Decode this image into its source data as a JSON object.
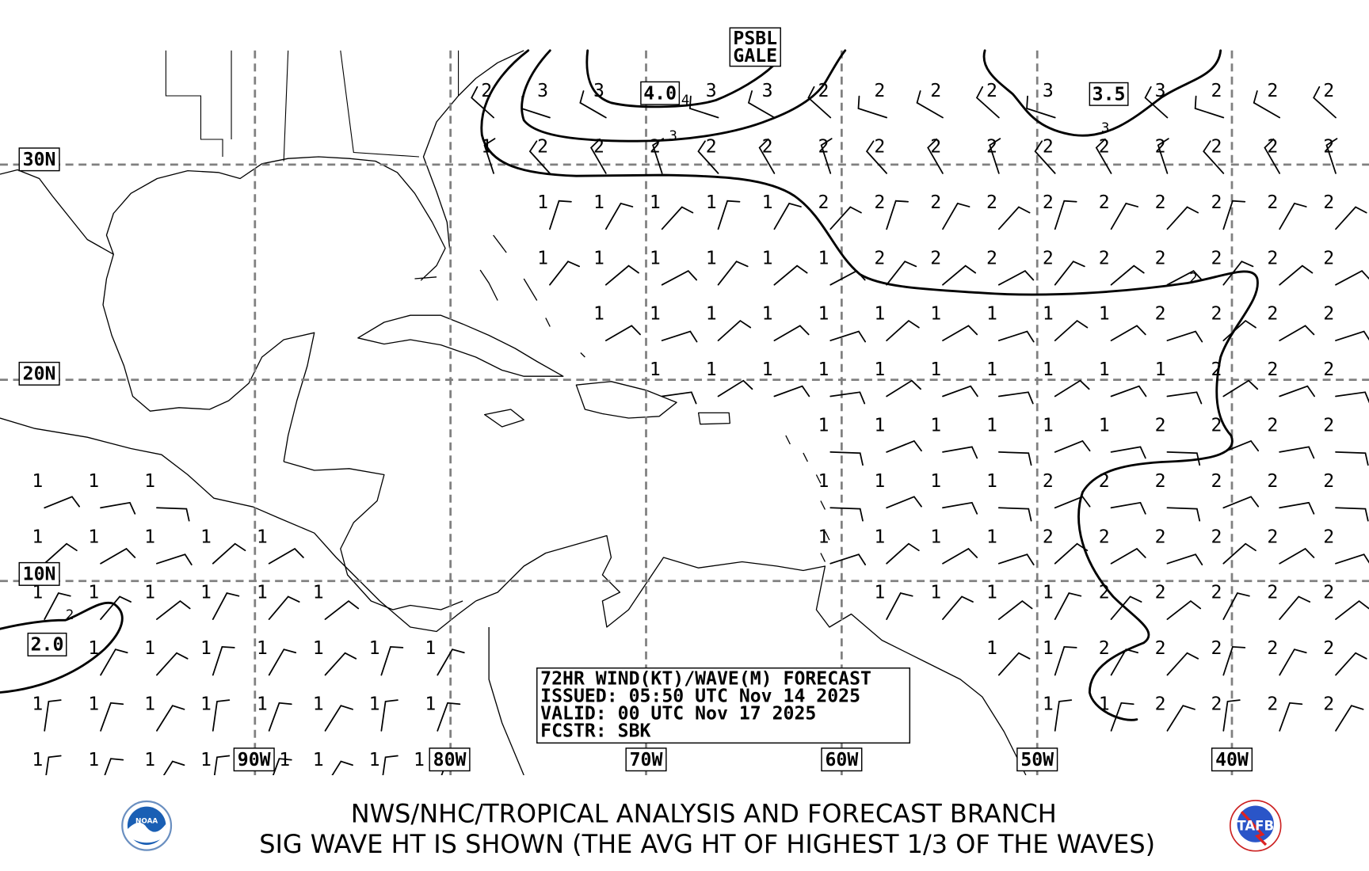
{
  "map": {
    "lat_labels": [
      "30N",
      "20N",
      "10N"
    ],
    "lon_labels": [
      "90W",
      "80W",
      "70W",
      "60W",
      "50W",
      "40W"
    ],
    "boxed_values": {
      "gale": [
        "PSBL",
        "GALE"
      ],
      "max_a": "4.0",
      "max_b": "3.5",
      "max_c": "2.0"
    },
    "contour_labels": [
      "4",
      "3",
      "3",
      "2",
      "2"
    ],
    "wave_heights_m": [
      [
        "",
        "",
        "",
        "",
        "",
        "",
        "",
        "",
        "2",
        "3",
        "3",
        "",
        "3",
        "3",
        "2",
        "2",
        "2",
        "2",
        "3",
        "",
        "3",
        "2",
        "2",
        "2"
      ],
      [
        "",
        "",
        "",
        "",
        "",
        "",
        "",
        "",
        "1",
        "2",
        "2",
        "2",
        "2",
        "2",
        "2",
        "2",
        "2",
        "2",
        "2",
        "2",
        "2",
        "2",
        "2",
        "2"
      ],
      [
        "",
        "",
        "",
        "",
        "",
        "",
        "",
        "",
        "",
        "1",
        "1",
        "1",
        "1",
        "1",
        "2",
        "2",
        "2",
        "2",
        "2",
        "2",
        "2",
        "2",
        "2",
        "2"
      ],
      [
        "",
        "",
        "",
        "",
        "",
        "",
        "",
        "",
        "",
        "1",
        "1",
        "1",
        "1",
        "1",
        "1",
        "2",
        "2",
        "2",
        "2",
        "2",
        "2",
        "2",
        "2",
        "2"
      ],
      [
        "",
        "",
        "",
        "",
        "",
        "",
        "",
        "",
        "",
        "",
        "1",
        "1",
        "1",
        "1",
        "1",
        "1",
        "1",
        "1",
        "1",
        "1",
        "2",
        "2",
        "2",
        "2"
      ],
      [
        "",
        "",
        "",
        "",
        "",
        "",
        "",
        "",
        "",
        "",
        "",
        "1",
        "1",
        "1",
        "1",
        "1",
        "1",
        "1",
        "1",
        "1",
        "1",
        "2",
        "2",
        "2"
      ],
      [
        "",
        "",
        "",
        "",
        "",
        "",
        "",
        "",
        "",
        "",
        "",
        "",
        "",
        "",
        "1",
        "1",
        "1",
        "1",
        "1",
        "1",
        "2",
        "2",
        "2",
        "2"
      ],
      [
        "1",
        "1",
        "1",
        "",
        "",
        "",
        "",
        "",
        "",
        "",
        "",
        "",
        "",
        "",
        "1",
        "1",
        "1",
        "1",
        "2",
        "2",
        "2",
        "2",
        "2",
        "2"
      ],
      [
        "1",
        "1",
        "1",
        "1",
        "1",
        "",
        "",
        "",
        "",
        "",
        "",
        "",
        "",
        "",
        "1",
        "1",
        "1",
        "1",
        "2",
        "2",
        "2",
        "2",
        "2",
        "2"
      ],
      [
        "1",
        "1",
        "1",
        "1",
        "1",
        "1",
        "",
        "",
        "",
        "",
        "",
        "",
        "",
        "",
        "",
        "1",
        "1",
        "1",
        "1",
        "2",
        "2",
        "2",
        "2",
        "2"
      ],
      [
        "",
        "1",
        "1",
        "1",
        "1",
        "1",
        "1",
        "1",
        "",
        "",
        "",
        "",
        "",
        "",
        "",
        "",
        "",
        "1",
        "1",
        "2",
        "2",
        "2",
        "2",
        "2"
      ],
      [
        "1",
        "1",
        "1",
        "1",
        "1",
        "1",
        "1",
        "1",
        "",
        "",
        "",
        "",
        "",
        "",
        "",
        "",
        "",
        "",
        "1",
        "1",
        "2",
        "2",
        "2",
        "2"
      ],
      [
        "1",
        "1",
        "1",
        "1",
        "1",
        "1",
        "1",
        "1",
        "",
        "",
        "",
        "",
        "",
        "",
        "",
        "",
        "",
        "",
        "",
        "",
        "",
        "",
        "",
        ""
      ]
    ],
    "wind_from_deg_by_row": [
      300,
      330,
      30,
      50,
      60,
      70,
      80,
      80,
      60,
      40,
      30,
      20,
      20
    ],
    "colors": {
      "grid": "#808080",
      "land": "#ffffff",
      "lines": "#000000"
    }
  },
  "info_box": {
    "line1": "72HR WIND(KT)/WAVE(M) FORECAST",
    "line2": "ISSUED: 05:50 UTC Nov 14 2025",
    "line3": "VALID: 00 UTC Nov 17 2025",
    "line4": "FCSTR: SBK"
  },
  "footer": {
    "line1": "NWS/NHC/TROPICAL ANALYSIS AND FORECAST BRANCH",
    "line2": "SIG WAVE HT IS SHOWN (THE AVG HT OF HIGHEST 1/3 OF THE WAVES)",
    "logo_left": "NOAA",
    "logo_right": "TAFB",
    "logo_right_ring": "TROPICAL ANALYSIS & FORECAST BRANCH"
  }
}
